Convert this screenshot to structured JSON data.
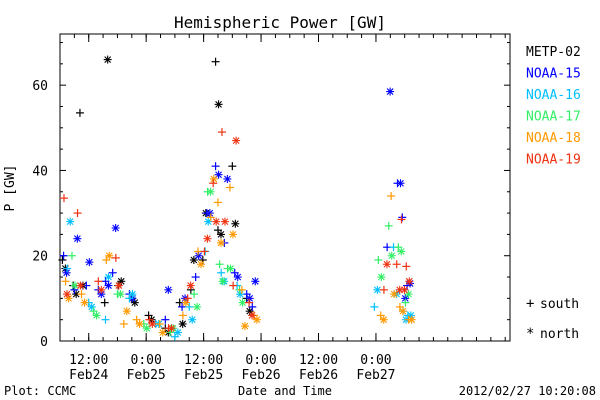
{
  "chart_data": {
    "type": "scatter",
    "title": "Hemispheric Power [GW]",
    "xlabel": "Date and Time",
    "ylabel": "P [GW]",
    "xlim": [
      "2012-02-24T06:00",
      "2012-02-28T04:00"
    ],
    "ylim": [
      0,
      72
    ],
    "yticks": [
      0,
      20,
      40,
      60
    ],
    "xticks": [
      {
        "time": "2012-02-24T12:00",
        "top": "12:00",
        "bottom": "Feb24"
      },
      {
        "time": "2012-02-25T00:00",
        "top": "0:00",
        "bottom": "Feb25"
      },
      {
        "time": "2012-02-25T12:00",
        "top": "12:00",
        "bottom": "Feb25"
      },
      {
        "time": "2012-02-26T00:00",
        "top": "0:00",
        "bottom": "Feb26"
      },
      {
        "time": "2012-02-26T12:00",
        "top": "12:00",
        "bottom": "Feb26"
      },
      {
        "time": "2012-02-27T00:00",
        "top": "0:00",
        "bottom": "Feb27"
      }
    ],
    "grid": false,
    "legend_position": "right",
    "marker_legend": [
      {
        "symbol": "+",
        "label": "south"
      },
      {
        "symbol": "*",
        "label": "north"
      }
    ],
    "series": [
      {
        "name": "METP-02",
        "color": "#000000",
        "points": [
          {
            "t": "2012-02-24T06:30",
            "south": 19,
            "north": 17
          },
          {
            "t": "2012-02-24T08:45",
            "south": 13,
            "north": 11
          },
          {
            "t": "2012-02-24T10:10",
            "south": 53.5,
            "north": 13
          },
          {
            "t": "2012-02-24T15:20",
            "south": 9,
            "north": 66
          },
          {
            "t": "2012-02-24T18:10",
            "south": 13,
            "north": 14
          },
          {
            "t": "2012-02-24T21:00",
            "south": 10,
            "north": 9
          },
          {
            "t": "2012-02-25T00:30",
            "south": 6,
            "north": 5
          },
          {
            "t": "2012-02-25T04:00",
            "south": 3,
            "north": 2
          },
          {
            "t": "2012-02-25T07:00",
            "south": 9,
            "north": 4
          },
          {
            "t": "2012-02-25T09:20",
            "south": 12,
            "north": 19
          },
          {
            "t": "2012-02-25T11:50",
            "south": 19,
            "north": 30
          },
          {
            "t": "2012-02-25T14:30",
            "south": 65.5,
            "north": 55.5
          },
          {
            "t": "2012-02-25T15:00",
            "south": 26,
            "north": 25
          },
          {
            "t": "2012-02-25T18:00",
            "south": 41,
            "north": 27.5
          },
          {
            "t": "2012-02-25T21:00",
            "south": 10,
            "north": 7
          }
        ]
      },
      {
        "name": "NOAA-15",
        "color": "#0000ff",
        "points": [
          {
            "t": "2012-02-24T06:45",
            "south": 20,
            "north": 16
          },
          {
            "t": "2012-02-24T09:00",
            "south": 12,
            "north": 24
          },
          {
            "t": "2012-02-24T11:30",
            "south": 13,
            "north": 18.5
          },
          {
            "t": "2012-02-24T14:00",
            "south": 12,
            "north": 11
          },
          {
            "t": "2012-02-24T15:30",
            "south": 14,
            "north": 13
          },
          {
            "t": "2012-02-24T17:00",
            "south": 16,
            "north": 26.5
          },
          {
            "t": "2012-02-24T20:30",
            "south": 11,
            "north": 10
          },
          {
            "t": "2012-02-25T04:00",
            "south": 5,
            "north": 12
          },
          {
            "t": "2012-02-25T07:30",
            "south": 8,
            "north": 10
          },
          {
            "t": "2012-02-25T10:20",
            "south": 15,
            "north": 20
          },
          {
            "t": "2012-02-25T12:40",
            "south": 30,
            "north": 30
          },
          {
            "t": "2012-02-25T14:30",
            "south": 41,
            "north": 39
          },
          {
            "t": "2012-02-25T16:20",
            "south": 23,
            "north": 38
          },
          {
            "t": "2012-02-25T18:30",
            "south": 16,
            "north": 15
          },
          {
            "t": "2012-02-25T21:00",
            "south": 11,
            "north": 10
          },
          {
            "t": "2012-02-25T22:10",
            "south": 8,
            "north": 14
          },
          {
            "t": "2012-02-27T02:20",
            "south": 22,
            "north": 58.5
          },
          {
            "t": "2012-02-27T04:30",
            "south": 37,
            "north": 37
          },
          {
            "t": "2012-02-27T05:30",
            "south": 29,
            "north": 10
          },
          {
            "t": "2012-02-27T06:30",
            "south": 13,
            "north": 13.5
          }
        ]
      },
      {
        "name": "NOAA-16",
        "color": "#00bfff",
        "points": [
          {
            "t": "2012-02-24T07:30",
            "south": 17,
            "north": 28
          },
          {
            "t": "2012-02-24T12:00",
            "south": 9,
            "north": 8
          },
          {
            "t": "2012-02-24T15:30",
            "south": 5,
            "north": 15
          },
          {
            "t": "2012-02-24T20:30",
            "south": 10,
            "north": 11
          },
          {
            "t": "2012-02-25T02:00",
            "south": 4,
            "north": 4
          },
          {
            "t": "2012-02-25T06:00",
            "south": 1,
            "north": 2
          },
          {
            "t": "2012-02-25T09:00",
            "south": 8,
            "north": 5
          },
          {
            "t": "2012-02-25T12:20",
            "south": 21,
            "north": 28
          },
          {
            "t": "2012-02-25T15:40",
            "south": 16,
            "north": 14
          },
          {
            "t": "2012-02-25T19:00",
            "south": 13,
            "north": 11
          },
          {
            "t": "2012-02-26T23:40",
            "south": 8,
            "north": 12
          },
          {
            "t": "2012-02-27T03:40",
            "south": 22,
            "north": 11
          },
          {
            "t": "2012-02-27T05:40",
            "south": 7,
            "north": 5
          },
          {
            "t": "2012-02-27T06:40",
            "south": 6,
            "north": 6
          }
        ]
      },
      {
        "name": "NOAA-17",
        "color": "#33ee66",
        "points": [
          {
            "t": "2012-02-24T08:30",
            "south": 20,
            "north": 13
          },
          {
            "t": "2012-02-24T13:00",
            "south": 7,
            "north": 6
          },
          {
            "t": "2012-02-24T18:00",
            "south": 11,
            "north": 11
          },
          {
            "t": "2012-02-24T23:30",
            "south": 4,
            "north": 3
          },
          {
            "t": "2012-02-25T05:00",
            "south": 2,
            "north": 3
          },
          {
            "t": "2012-02-25T10:00",
            "south": 11,
            "north": 8
          },
          {
            "t": "2012-02-25T12:50",
            "south": 35,
            "north": 35
          },
          {
            "t": "2012-02-25T15:20",
            "south": 18,
            "north": 14
          },
          {
            "t": "2012-02-25T17:00",
            "south": 17,
            "north": 17
          },
          {
            "t": "2012-02-25T19:30",
            "south": 12,
            "north": 9
          },
          {
            "t": "2012-02-27T00:30",
            "south": 19,
            "north": 15
          },
          {
            "t": "2012-02-27T02:40",
            "south": 27,
            "north": 20
          },
          {
            "t": "2012-02-27T04:40",
            "south": 22,
            "north": 21
          },
          {
            "t": "2012-02-27T06:10",
            "south": 9,
            "north": 11
          }
        ]
      },
      {
        "name": "NOAA-18",
        "color": "#ff9900",
        "points": [
          {
            "t": "2012-02-24T07:10",
            "south": 14,
            "north": 10
          },
          {
            "t": "2012-02-24T10:30",
            "south": 11,
            "north": 9
          },
          {
            "t": "2012-02-24T15:40",
            "south": 19,
            "north": 20
          },
          {
            "t": "2012-02-24T19:20",
            "south": 4,
            "north": 7
          },
          {
            "t": "2012-02-24T22:00",
            "south": 5,
            "north": 4
          },
          {
            "t": "2012-02-25T02:50",
            "south": 4,
            "north": 2
          },
          {
            "t": "2012-02-25T07:40",
            "south": 6,
            "north": 9
          },
          {
            "t": "2012-02-25T10:50",
            "south": 21,
            "north": 18
          },
          {
            "t": "2012-02-25T13:30",
            "south": 29,
            "north": 38
          },
          {
            "t": "2012-02-25T15:00",
            "south": 32.5,
            "north": 23
          },
          {
            "t": "2012-02-25T17:30",
            "south": 36,
            "north": 25
          },
          {
            "t": "2012-02-25T20:00",
            "south": 12,
            "north": 3.5
          },
          {
            "t": "2012-02-25T22:30",
            "south": 6,
            "north": 5
          },
          {
            "t": "2012-02-27T01:00",
            "south": 6,
            "north": 5
          },
          {
            "t": "2012-02-27T03:10",
            "south": 34,
            "north": 11
          },
          {
            "t": "2012-02-27T05:00",
            "south": 8,
            "north": 7
          },
          {
            "t": "2012-02-27T06:50",
            "south": 5,
            "north": 5
          }
        ]
      },
      {
        "name": "NOAA-19",
        "color": "#ee3311",
        "points": [
          {
            "t": "2012-02-24T06:50",
            "south": 33.5,
            "north": 11
          },
          {
            "t": "2012-02-24T09:40",
            "south": 30,
            "north": 13
          },
          {
            "t": "2012-02-24T14:00",
            "south": 14,
            "north": 12
          },
          {
            "t": "2012-02-24T17:40",
            "south": 19.5,
            "north": 13
          },
          {
            "t": "2012-02-25T00:40",
            "south": 5,
            "north": 4
          },
          {
            "t": "2012-02-25T04:40",
            "south": 3,
            "north": 3
          },
          {
            "t": "2012-02-25T08:40",
            "south": 10,
            "north": 13
          },
          {
            "t": "2012-02-25T12:10",
            "south": 21,
            "north": 24
          },
          {
            "t": "2012-02-25T14:00",
            "south": 37,
            "north": 28
          },
          {
            "t": "2012-02-25T15:50",
            "south": 49,
            "north": 28
          },
          {
            "t": "2012-02-25T18:10",
            "south": 13,
            "north": 47
          },
          {
            "t": "2012-02-25T21:30",
            "south": 9,
            "north": 6
          },
          {
            "t": "2012-02-27T01:40",
            "south": 12,
            "north": 18
          },
          {
            "t": "2012-02-27T04:20",
            "south": 18,
            "north": 12
          },
          {
            "t": "2012-02-27T05:20",
            "south": 28.5,
            "north": 12
          },
          {
            "t": "2012-02-27T06:20",
            "south": 17.5,
            "north": 14
          }
        ]
      }
    ]
  },
  "footer": {
    "left": "Plot: CCMC",
    "right": "2012/02/27 10:20:08"
  }
}
